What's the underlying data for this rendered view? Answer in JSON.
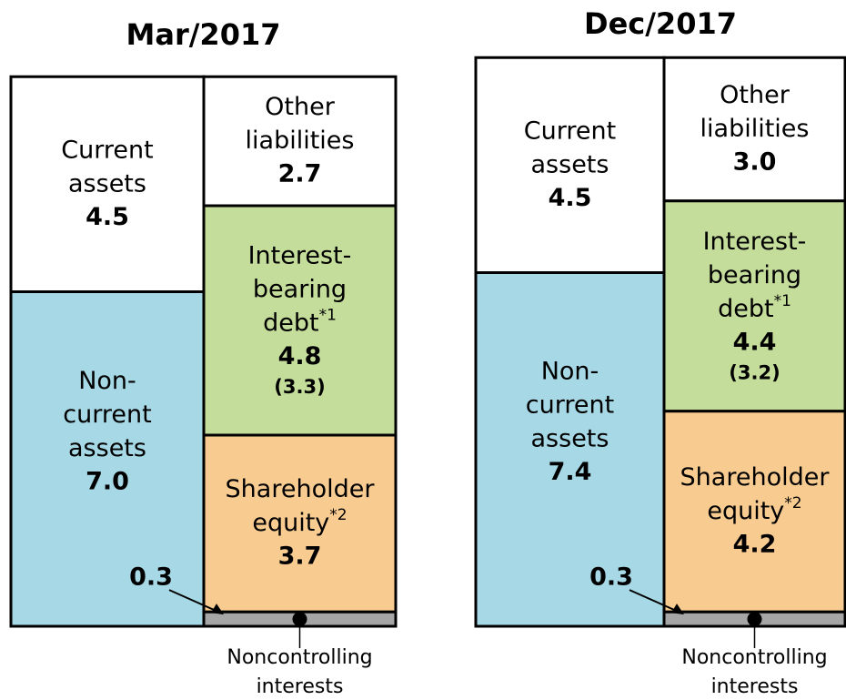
{
  "chart_data": [
    {
      "type": "balance",
      "title": "Mar/2017",
      "assets": [
        {
          "lines": [
            "Current",
            "assets"
          ],
          "value": 4.5,
          "color": "#ffffff"
        },
        {
          "lines": [
            "Non-",
            "current",
            "assets"
          ],
          "value": 7.0,
          "value_label": "7.0",
          "color": "#a6d8e6"
        }
      ],
      "liabilities": [
        {
          "lines": [
            "Other",
            "liabilities"
          ],
          "value": 2.7,
          "color": "#ffffff"
        },
        {
          "lines": [
            "Interest-",
            "bearing",
            "debt"
          ],
          "sup": "*1",
          "value": 4.8,
          "note": "(3.3)",
          "color": "#c4dd9a"
        },
        {
          "lines": [
            "Shareholder",
            "equity"
          ],
          "sup": "*2",
          "value": 3.7,
          "color": "#f8cb91"
        },
        {
          "lines": [
            "Noncontrolling",
            "interests"
          ],
          "value": 0.3,
          "color": "#a6a6a6"
        }
      ]
    },
    {
      "type": "balance",
      "title": "Dec/2017",
      "assets": [
        {
          "lines": [
            "Current",
            "assets"
          ],
          "value": 4.5,
          "color": "#ffffff"
        },
        {
          "lines": [
            "Non-",
            "current",
            "assets"
          ],
          "value": 7.4,
          "color": "#a6d8e6"
        }
      ],
      "liabilities": [
        {
          "lines": [
            "Other",
            "liabilities"
          ],
          "value": 3.0,
          "value_label": "3.0",
          "color": "#ffffff"
        },
        {
          "lines": [
            "Interest-",
            "bearing",
            "debt"
          ],
          "sup": "*1",
          "value": 4.4,
          "note": "(3.2)",
          "color": "#c4dd9a"
        },
        {
          "lines": [
            "Shareholder",
            "equity"
          ],
          "sup": "*2",
          "value": 4.2,
          "color": "#f8cb91"
        },
        {
          "lines": [
            "Noncontrolling",
            "interests"
          ],
          "value": 0.3,
          "color": "#a6a6a6"
        }
      ]
    }
  ]
}
